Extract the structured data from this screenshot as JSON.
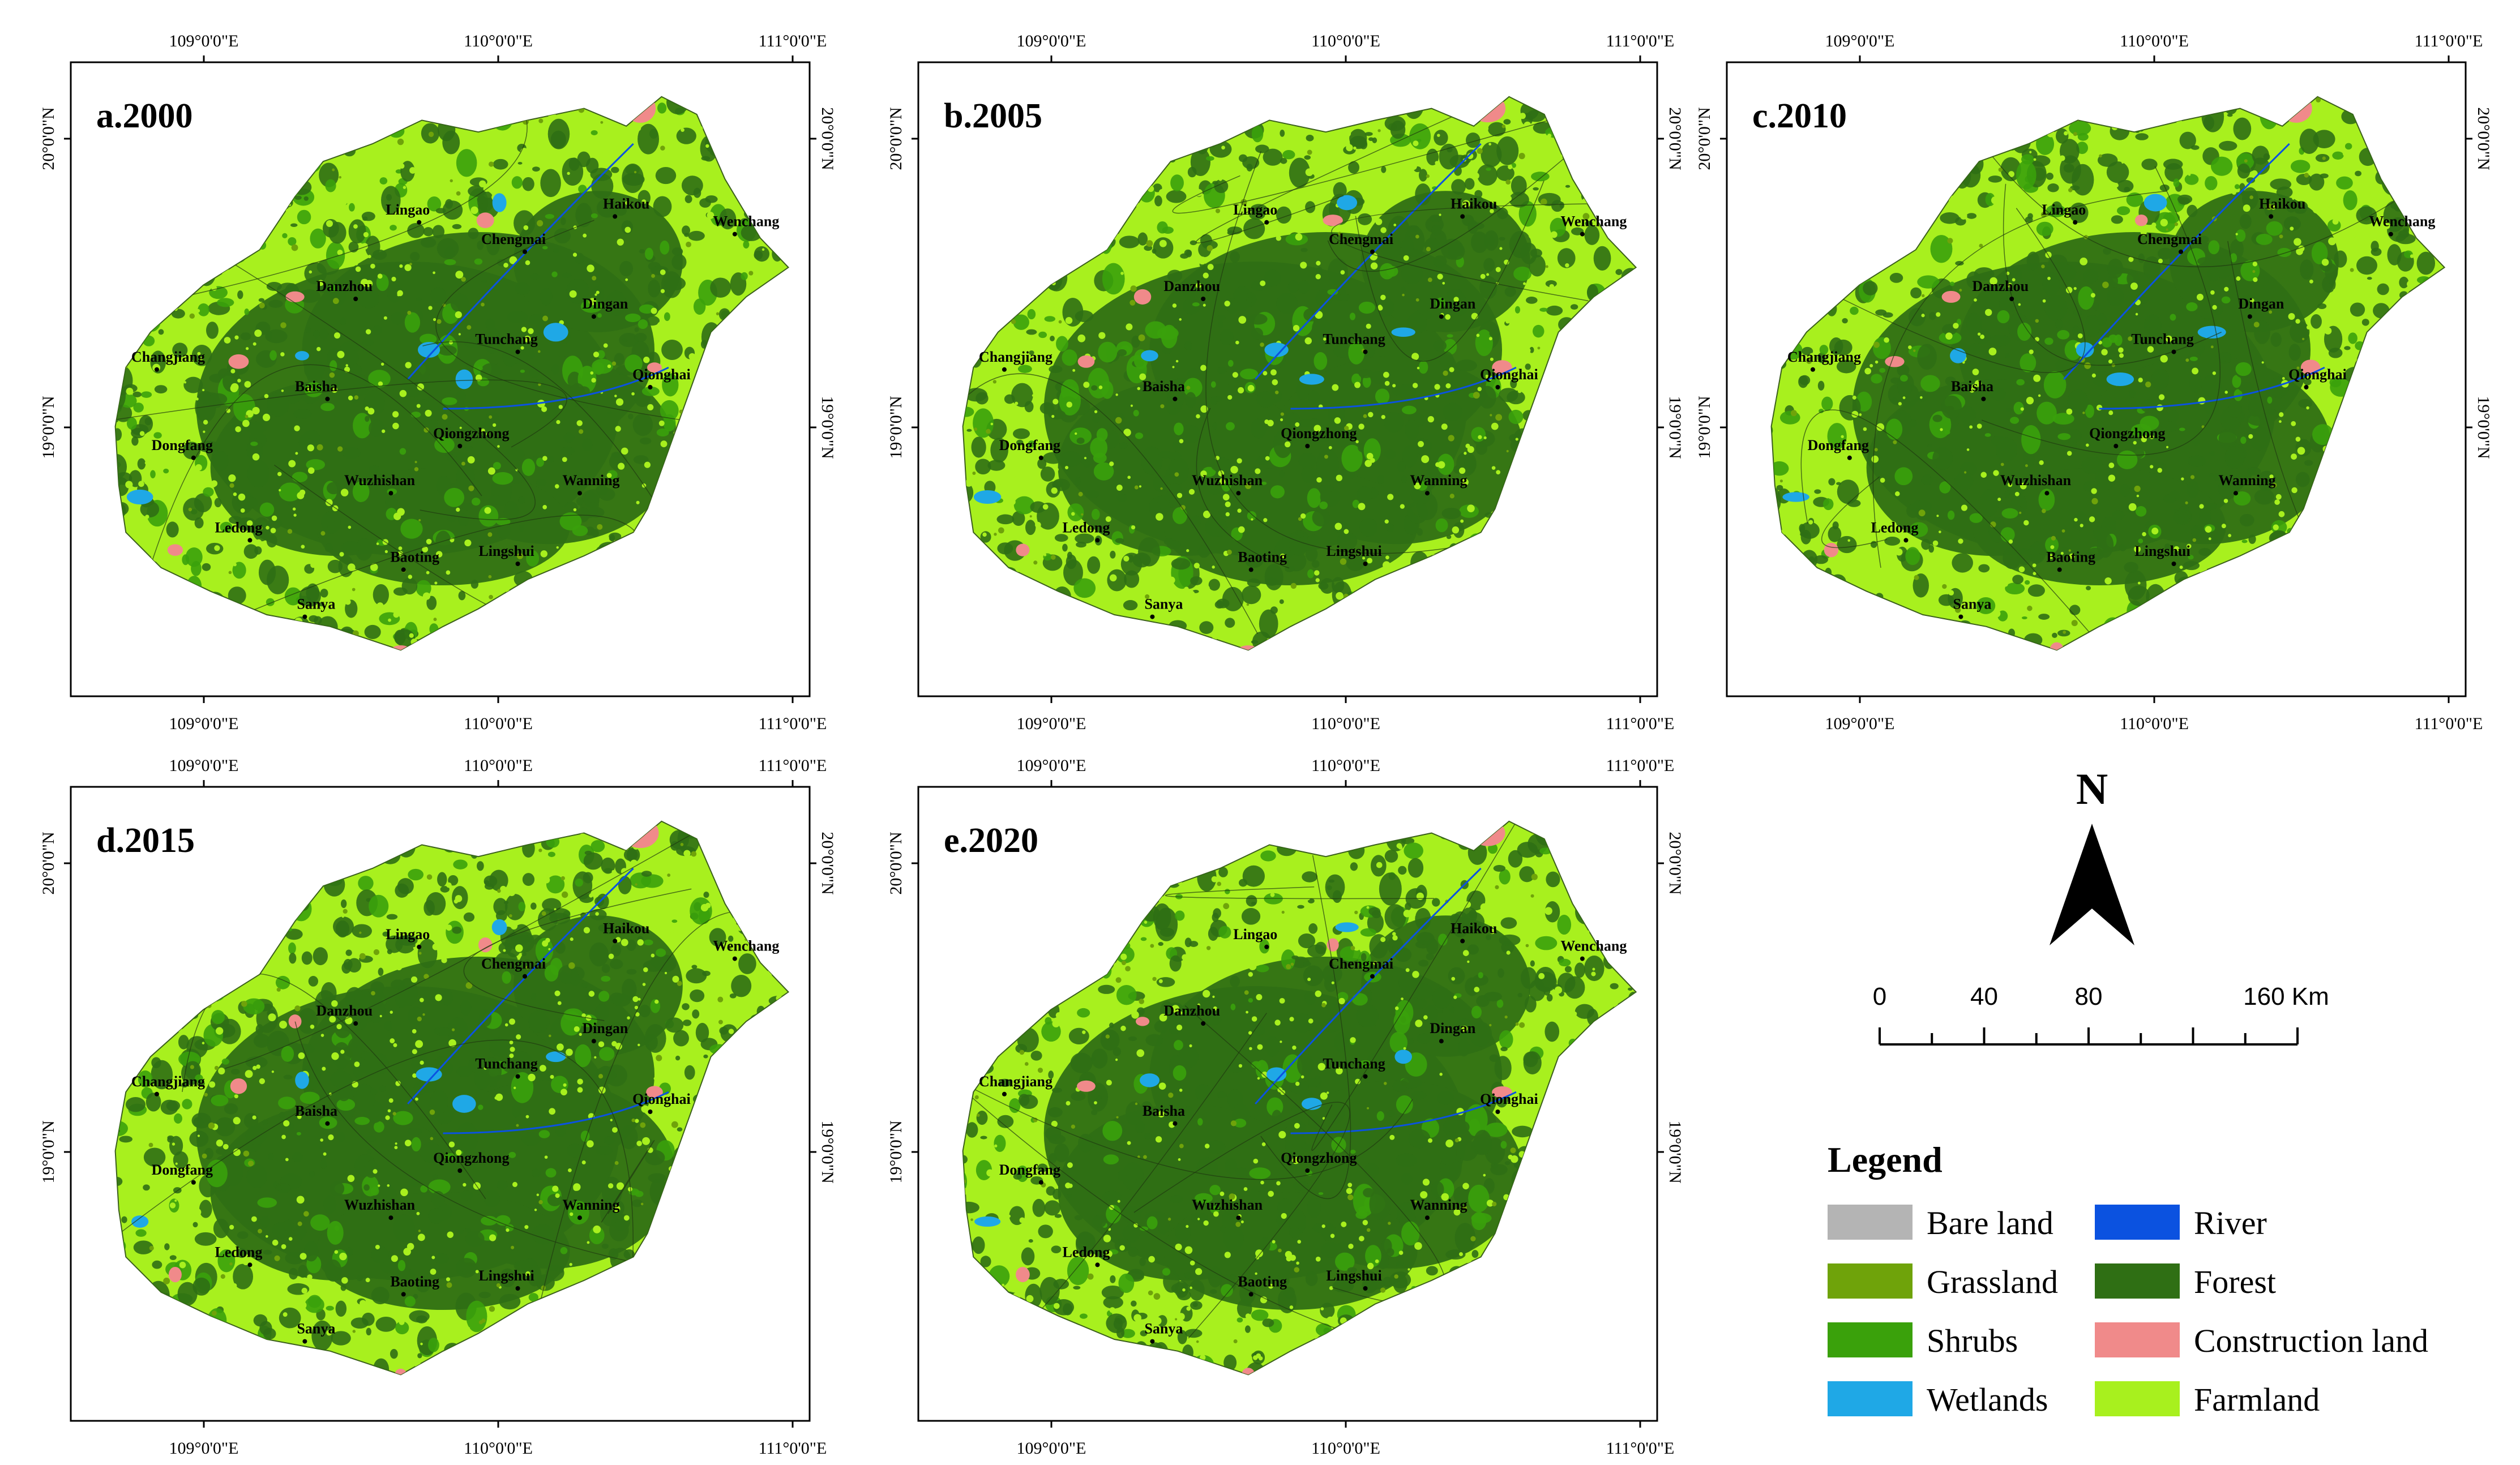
{
  "colors": {
    "bare_land": "#b4b4b4",
    "grassland": "#6fa30a",
    "shrubs": "#3aa10b",
    "wetlands": "#1fa8e6",
    "river": "#0b52e0",
    "forest": "#2f6f14",
    "construction_land": "#f08a8a",
    "farmland": "#a8f01e"
  },
  "coords": {
    "lon": [
      "109°0'0\"E",
      "110°0'0\"E",
      "111°0'0\"E"
    ],
    "lat": [
      "20°0'0\"N",
      "19°0'0\"N"
    ]
  },
  "panels": [
    {
      "title": "a.2000"
    },
    {
      "title": "b.2005"
    },
    {
      "title": "c.2010"
    },
    {
      "title": "d.2015"
    },
    {
      "title": "e.2020"
    }
  ],
  "places": [
    "Lingao",
    "Haikou",
    "Chengmai",
    "Wenchang",
    "Danzhou",
    "Dingan",
    "Tunchang",
    "Changjiang",
    "Baisha",
    "Qionghai",
    "Dongfang",
    "Qiongzhong",
    "Wuzhishan",
    "Wanning",
    "Ledong",
    "Baoting",
    "Lingshui",
    "Sanya"
  ],
  "north_arrow": {
    "label": "N"
  },
  "scale_bar": {
    "ticks": [
      "0",
      "40",
      "80",
      "160 Km"
    ]
  },
  "legend": {
    "title": "Legend",
    "items": [
      {
        "label": "Bare land",
        "color_key": "bare_land"
      },
      {
        "label": "River",
        "color_key": "river"
      },
      {
        "label": "Grassland",
        "color_key": "grassland"
      },
      {
        "label": "Forest",
        "color_key": "forest"
      },
      {
        "label": "Shrubs",
        "color_key": "shrubs"
      },
      {
        "label": "Construction land",
        "color_key": "construction_land"
      },
      {
        "label": "Wetlands",
        "color_key": "wetlands"
      },
      {
        "label": "Farmland",
        "color_key": "farmland"
      }
    ]
  }
}
